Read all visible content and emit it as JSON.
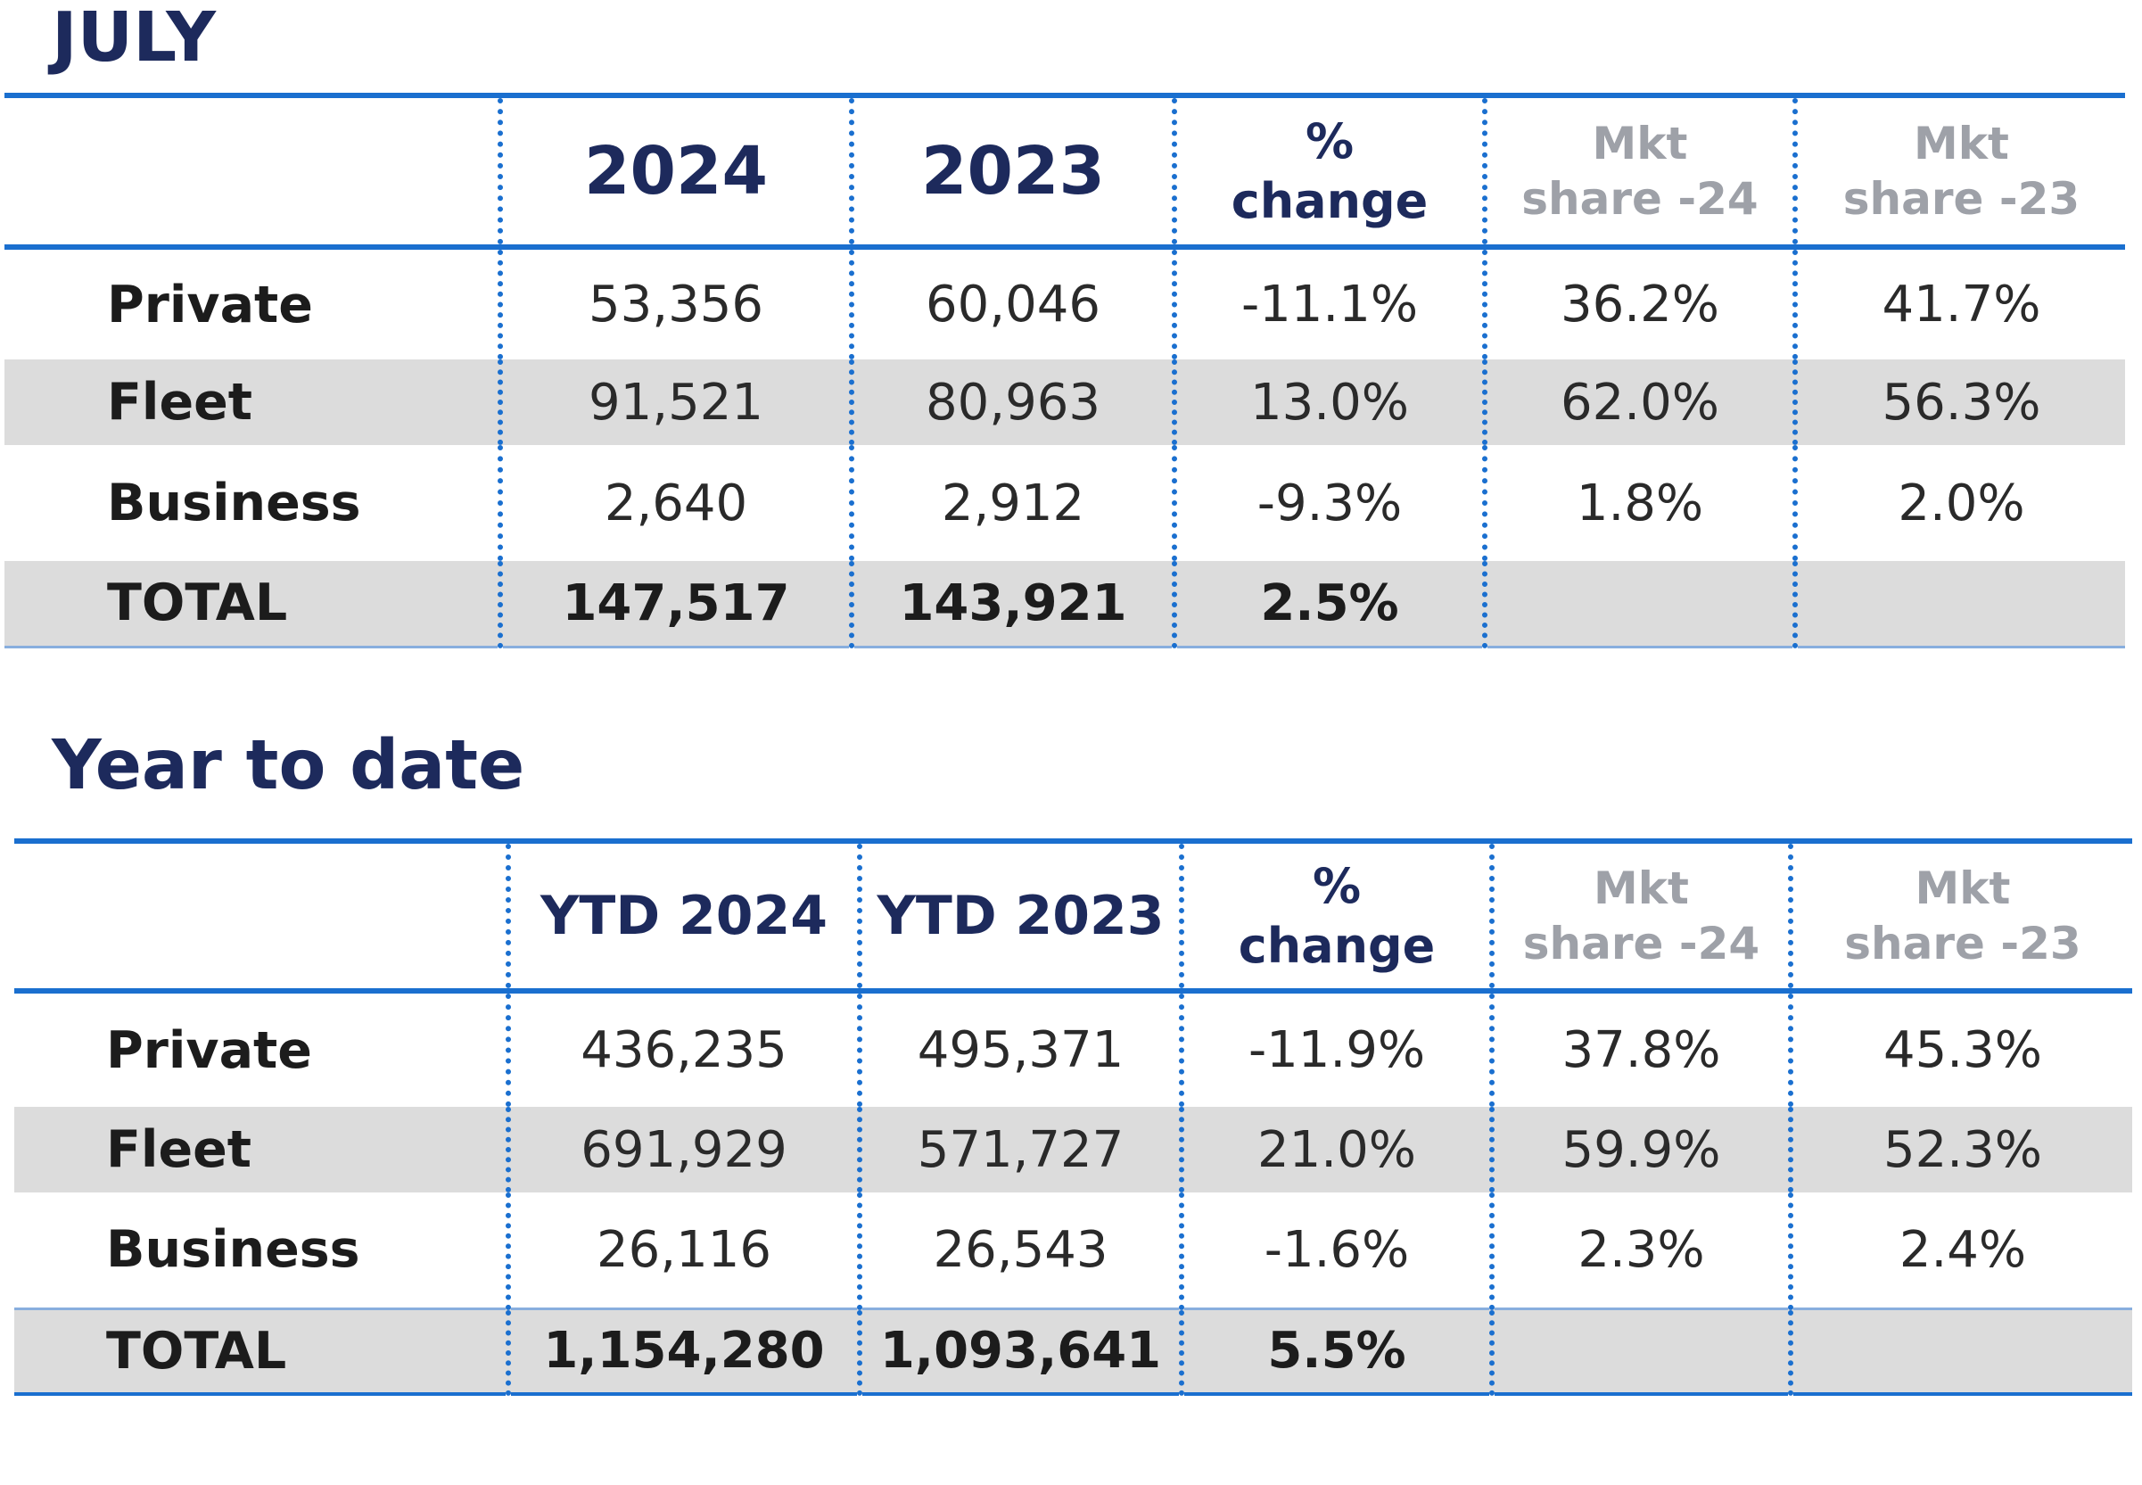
{
  "sections": [
    {
      "title": "JULY",
      "headers": {
        "col1": "2024",
        "col2": "2023",
        "change_line1": "%",
        "change_line2": "change",
        "mkt24_line1": "Mkt",
        "mkt24_line2": "share -24",
        "mkt23_line1": "Mkt",
        "mkt23_line2": "share -23"
      },
      "rows": [
        {
          "label": "Private",
          "v1": "53,356",
          "v2": "60,046",
          "change": "-11.1%",
          "share24": "36.2%",
          "share23": "41.7%"
        },
        {
          "label": "Fleet",
          "v1": "91,521",
          "v2": "80,963",
          "change": "13.0%",
          "share24": "62.0%",
          "share23": "56.3%"
        },
        {
          "label": "Business",
          "v1": "2,640",
          "v2": "2,912",
          "change": "-9.3%",
          "share24": "1.8%",
          "share23": "2.0%"
        },
        {
          "label": "TOTAL",
          "v1": "147,517",
          "v2": "143,921",
          "change": "2.5%",
          "share24": "",
          "share23": ""
        }
      ]
    },
    {
      "title": "Year to date",
      "headers": {
        "col1": "YTD 2024",
        "col2": "YTD 2023",
        "change_line1": "%",
        "change_line2": "change",
        "mkt24_line1": "Mkt",
        "mkt24_line2": "share -24",
        "mkt23_line1": "Mkt",
        "mkt23_line2": "share -23"
      },
      "rows": [
        {
          "label": "Private",
          "v1": "436,235",
          "v2": "495,371",
          "change": "-11.9%",
          "share24": "37.8%",
          "share23": "45.3%"
        },
        {
          "label": "Fleet",
          "v1": "691,929",
          "v2": "571,727",
          "change": "21.0%",
          "share24": "59.9%",
          "share23": "52.3%"
        },
        {
          "label": "Business",
          "v1": "26,116",
          "v2": "26,543",
          "change": "-1.6%",
          "share24": "2.3%",
          "share23": "2.4%"
        },
        {
          "label": "TOTAL",
          "v1": "1,154,280",
          "v2": "1,093,641",
          "change": "5.5%",
          "share24": "",
          "share23": ""
        }
      ]
    }
  ]
}
